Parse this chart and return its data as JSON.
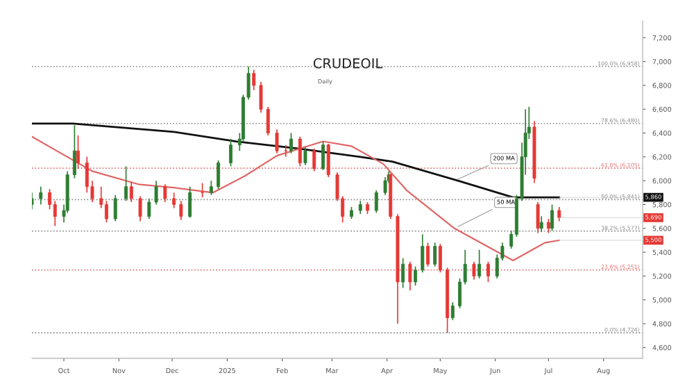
{
  "chart_data": {
    "type": "candlestick",
    "title": "CRUDEOIL",
    "subtitle": "Daily",
    "x": [
      "2024-09-13",
      "2024-09-18",
      "2024-09-23",
      "2024-09-26",
      "2024-10-01",
      "2024-10-03",
      "2024-10-07",
      "2024-10-09",
      "2024-10-14",
      "2024-10-17",
      "2024-10-22",
      "2024-10-25",
      "2024-10-30",
      "2024-11-05",
      "2024-11-08",
      "2024-11-13",
      "2024-11-18",
      "2024-11-22",
      "2024-11-27",
      "2024-12-02",
      "2024-12-06",
      "2024-12-11",
      "2024-12-18",
      "2024-12-23",
      "2024-12-27",
      "2025-01-03",
      "2025-01-08",
      "2025-01-10",
      "2025-01-13",
      "2025-01-16",
      "2025-01-20",
      "2025-01-24",
      "2025-01-29",
      "2025-02-03",
      "2025-02-06",
      "2025-02-11",
      "2025-02-14",
      "2025-02-19",
      "2025-02-24",
      "2025-02-27",
      "2025-03-04",
      "2025-03-07",
      "2025-03-12",
      "2025-03-17",
      "2025-03-21",
      "2025-03-26",
      "2025-03-31",
      "2025-04-02",
      "2025-04-03",
      "2025-04-07",
      "2025-04-10",
      "2025-04-14",
      "2025-04-17",
      "2025-04-21",
      "2025-04-24",
      "2025-04-28",
      "2025-05-01",
      "2025-05-05",
      "2025-05-08",
      "2025-05-12",
      "2025-05-15",
      "2025-05-20",
      "2025-05-23",
      "2025-05-28",
      "2025-06-02",
      "2025-06-05",
      "2025-06-10",
      "2025-06-13",
      "2025-06-16",
      "2025-06-18",
      "2025-06-20",
      "2025-06-23",
      "2025-06-25",
      "2025-06-27",
      "2025-07-01",
      "2025-07-03",
      "2025-07-07"
    ],
    "ohlc": [
      [
        5800,
        5900,
        5760,
        5850
      ],
      [
        5850,
        5950,
        5800,
        5900
      ],
      [
        5900,
        5930,
        5760,
        5800
      ],
      [
        5800,
        5830,
        5620,
        5700
      ],
      [
        5700,
        5800,
        5650,
        5750
      ],
      [
        5750,
        6080,
        5730,
        6050
      ],
      [
        6050,
        6465,
        6020,
        6250
      ],
      [
        6250,
        6380,
        6100,
        6150
      ],
      [
        6150,
        6200,
        5900,
        5950
      ],
      [
        5950,
        6000,
        5820,
        5850
      ],
      [
        5850,
        5950,
        5770,
        5800
      ],
      [
        5800,
        5830,
        5650,
        5680
      ],
      [
        5680,
        5880,
        5660,
        5850
      ],
      [
        5850,
        6120,
        5830,
        5950
      ],
      [
        5950,
        5990,
        5820,
        5850
      ],
      [
        5850,
        5870,
        5660,
        5700
      ],
      [
        5700,
        5850,
        5680,
        5820
      ],
      [
        5820,
        6000,
        5800,
        5950
      ],
      [
        5950,
        5970,
        5820,
        5850
      ],
      [
        5850,
        5900,
        5770,
        5800
      ],
      [
        5800,
        5830,
        5670,
        5700
      ],
      [
        5700,
        5950,
        5690,
        5900
      ],
      [
        5900,
        5980,
        5860,
        5900
      ],
      [
        5900,
        6000,
        5880,
        5950
      ],
      [
        5950,
        6170,
        5930,
        6150
      ],
      [
        6150,
        6350,
        6120,
        6300
      ],
      [
        6300,
        6400,
        6250,
        6350
      ],
      [
        6350,
        6720,
        6330,
        6700
      ],
      [
        6700,
        6958,
        6680,
        6900
      ],
      [
        6900,
        6930,
        6760,
        6800
      ],
      [
        6800,
        6830,
        6570,
        6600
      ],
      [
        6600,
        6620,
        6380,
        6400
      ],
      [
        6400,
        6430,
        6230,
        6250
      ],
      [
        6250,
        6300,
        6200,
        6250
      ],
      [
        6250,
        6400,
        6230,
        6350
      ],
      [
        6350,
        6370,
        6120,
        6150
      ],
      [
        6150,
        6280,
        6130,
        6250
      ],
      [
        6250,
        6270,
        6080,
        6100
      ],
      [
        6100,
        6330,
        6090,
        6300
      ],
      [
        6300,
        6310,
        6030,
        6050
      ],
      [
        6050,
        6070,
        5830,
        5850
      ],
      [
        5850,
        5870,
        5650,
        5700
      ],
      [
        5700,
        5780,
        5680,
        5750
      ],
      [
        5750,
        5830,
        5720,
        5800
      ],
      [
        5800,
        5820,
        5720,
        5750
      ],
      [
        5750,
        5920,
        5730,
        5900
      ],
      [
        5900,
        6030,
        5880,
        6000
      ],
      [
        6000,
        6080,
        5980,
        6050
      ],
      [
        6050,
        6060,
        5680,
        5700
      ],
      [
        5700,
        5720,
        4800,
        5150
      ],
      [
        5150,
        5350,
        5100,
        5300
      ],
      [
        5300,
        5320,
        5080,
        5150
      ],
      [
        5150,
        5280,
        5120,
        5250
      ],
      [
        5250,
        5550,
        5230,
        5450
      ],
      [
        5450,
        5480,
        5280,
        5300
      ],
      [
        5300,
        5480,
        5280,
        5450
      ],
      [
        5450,
        5470,
        5230,
        5250
      ],
      [
        5250,
        5270,
        4724,
        4850
      ],
      [
        4850,
        4980,
        4830,
        4950
      ],
      [
        4950,
        5180,
        4930,
        5150
      ],
      [
        5150,
        5420,
        5130,
        5300
      ],
      [
        5300,
        5320,
        5170,
        5200
      ],
      [
        5200,
        5420,
        5180,
        5300
      ],
      [
        5300,
        5320,
        5150,
        5200
      ],
      [
        5200,
        5380,
        5180,
        5350
      ],
      [
        5350,
        5480,
        5330,
        5450
      ],
      [
        5450,
        5580,
        5430,
        5550
      ],
      [
        5550,
        5880,
        5530,
        5850
      ],
      [
        5850,
        6320,
        5830,
        6200
      ],
      [
        6200,
        6600,
        6050,
        6400
      ],
      [
        6400,
        6620,
        6350,
        6450
      ],
      [
        6450,
        6500,
        5980,
        6020
      ],
      [
        5800,
        5820,
        5560,
        5600
      ],
      [
        5600,
        5700,
        5570,
        5650
      ],
      [
        5650,
        5680,
        5560,
        5600
      ],
      [
        5600,
        5800,
        5580,
        5750
      ],
      [
        5750,
        5780,
        5660,
        5690
      ]
    ],
    "colors": [
      "#2e7d32",
      "#2e7d32",
      "#e53935",
      "#e53935",
      "#2e7d32",
      "#2e7d32",
      "#2e7d32",
      "#e53935",
      "#e53935",
      "#e53935",
      "#e53935",
      "#e53935",
      "#2e7d32",
      "#2e7d32",
      "#e53935",
      "#e53935",
      "#2e7d32",
      "#2e7d32",
      "#e53935",
      "#e53935",
      "#e53935",
      "#2e7d32",
      "#e53935",
      "#2e7d32",
      "#2e7d32",
      "#2e7d32",
      "#2e7d32",
      "#2e7d32",
      "#2e7d32",
      "#e53935",
      "#e53935",
      "#e53935",
      "#e53935",
      "#e53935",
      "#2e7d32",
      "#e53935",
      "#2e7d32",
      "#e53935",
      "#2e7d32",
      "#e53935",
      "#e53935",
      "#e53935",
      "#2e7d32",
      "#2e7d32",
      "#e53935",
      "#2e7d32",
      "#2e7d32",
      "#2e7d32",
      "#e53935",
      "#e53935",
      "#2e7d32",
      "#e53935",
      "#2e7d32",
      "#2e7d32",
      "#e53935",
      "#2e7d32",
      "#e53935",
      "#e53935",
      "#2e7d32",
      "#2e7d32",
      "#2e7d32",
      "#e53935",
      "#2e7d32",
      "#e53935",
      "#2e7d32",
      "#2e7d32",
      "#2e7d32",
      "#2e7d32",
      "#2e7d32",
      "#2e7d32",
      "#2e7d32",
      "#e53935",
      "#e53935",
      "#2e7d32",
      "#e53935",
      "#2e7d32",
      "#e53935"
    ],
    "series": [
      {
        "type": "line",
        "color": "#111111",
        "x": [
          "2024-09-13",
          "2024-10-06",
          "2024-12-02",
          "2025-01-06",
          "2025-02-10",
          "2025-03-17",
          "2025-04-04",
          "2025-05-11",
          "2025-06-11",
          "2025-07-07"
        ],
        "values": [
          6480,
          6480,
          6410,
          6330,
          6270,
          6200,
          6160,
          6000,
          5860,
          5860
        ]
      },
      {
        "type": "line",
        "color": "#e06666",
        "x": [
          "2024-09-13",
          "2024-10-17",
          "2024-11-12",
          "2024-12-03",
          "2024-12-24",
          "2025-01-11",
          "2025-01-29",
          "2025-02-24",
          "2025-03-12",
          "2025-03-30",
          "2025-04-12",
          "2025-05-09",
          "2025-06-11",
          "2025-06-29",
          "2025-07-07"
        ],
        "values": [
          6370,
          6080,
          5970,
          5940,
          5900,
          6040,
          6210,
          6330,
          6290,
          6140,
          5920,
          5600,
          5330,
          5480,
          5500
        ]
      }
    ],
    "xlim": [
      "2024-09-13",
      "2025-08-23"
    ],
    "xticks": [
      {
        "value": "2024-10-01",
        "label": "Oct"
      },
      {
        "value": "2024-11-01",
        "label": "Nov"
      },
      {
        "value": "2024-12-01",
        "label": "Dec"
      },
      {
        "value": "2025-01-01",
        "label": "2025"
      },
      {
        "value": "2025-02-01",
        "label": "Feb"
      },
      {
        "value": "2025-03-01",
        "label": "Mar"
      },
      {
        "value": "2025-04-01",
        "label": "Apr"
      },
      {
        "value": "2025-05-01",
        "label": "May"
      },
      {
        "value": "2025-06-01",
        "label": "Jun"
      },
      {
        "value": "2025-07-01",
        "label": "Jul"
      },
      {
        "value": "2025-08-01",
        "label": "Aug"
      }
    ],
    "ylim": [
      4510,
      7340
    ],
    "yticks": [
      {
        "value": 4600,
        "label": "4,600"
      },
      {
        "value": 4800,
        "label": "4,800"
      },
      {
        "value": 5000,
        "label": "5,000"
      },
      {
        "value": 5200,
        "label": "5,200"
      },
      {
        "value": 5400,
        "label": "5,400"
      },
      {
        "value": 5600,
        "label": "5,600"
      },
      {
        "value": 5800,
        "label": "5,800"
      },
      {
        "value": 6000,
        "label": "6,000"
      },
      {
        "value": 6200,
        "label": "6,200"
      },
      {
        "value": 6400,
        "label": "6,400"
      },
      {
        "value": 6600,
        "label": "6,600"
      },
      {
        "value": 6800,
        "label": "6,800"
      },
      {
        "value": 7000,
        "label": "7,000"
      },
      {
        "value": 7200,
        "label": "7,200"
      }
    ],
    "ref_lines": [
      {
        "axis": "y",
        "value": 6958,
        "label": "100.0% (6,958)",
        "color": "#888888",
        "line_style": "dotted"
      },
      {
        "axis": "y",
        "value": 6480,
        "label": "78.6% (6,480)",
        "color": "#888888",
        "line_style": "dotted"
      },
      {
        "axis": "y",
        "value": 6105,
        "label": "61.8% (6,105)",
        "color": "#e07070",
        "line_style": "dotted"
      },
      {
        "axis": "y",
        "value": 5841,
        "label": "50.0% (5,841)",
        "color": "#888888",
        "line_style": "dotted"
      },
      {
        "axis": "y",
        "value": 5577,
        "label": "38.2% (5,577)",
        "color": "#888888",
        "line_style": "dotted"
      },
      {
        "axis": "y",
        "value": 5251,
        "label": "23.6% (5,251)",
        "color": "#e07070",
        "line_style": "dotted"
      },
      {
        "axis": "y",
        "value": 4724,
        "label": "0.0% (4,724)",
        "color": "#888888",
        "line_style": "dotted"
      }
    ],
    "annotations": [
      {
        "text": "200 MA",
        "x": "2025-05-09",
        "y": 6000
      },
      {
        "text": "50 MA",
        "x": "2025-05-09",
        "y": 5600
      },
      {
        "text": "5,860",
        "x": "2025-07-07",
        "y": 5860
      },
      {
        "text": "5,690",
        "x": "2025-07-07",
        "y": 5690
      },
      {
        "text": "5,500",
        "x": "2025-07-07",
        "y": 5500
      }
    ],
    "grid": false,
    "legend": false
  }
}
